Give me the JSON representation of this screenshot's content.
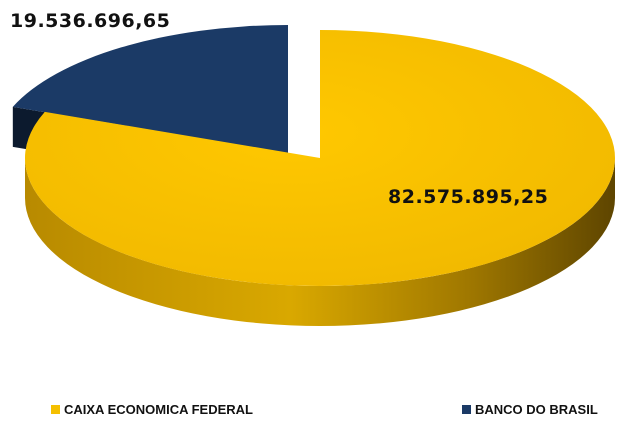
{
  "chart_data": {
    "type": "pie",
    "style": "3d-exploded",
    "title": "",
    "series": [
      {
        "name": "",
        "slices": [
          {
            "label": "CAIXA ECONOMICA FEDERAL",
            "value": 82575895.25,
            "display": "82.575.895,25",
            "color": "#f5c000"
          },
          {
            "label": "BANCO DO BRASIL",
            "value": 19536696.65,
            "display": "19.536.696,65",
            "color": "#1b3a66"
          }
        ]
      }
    ],
    "legend_placement": "bottom"
  }
}
